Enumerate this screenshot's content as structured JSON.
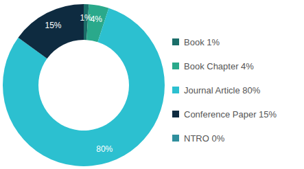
{
  "chart_data": {
    "type": "donut",
    "categories": [
      "Book 1%",
      "Book Chapter 4%",
      "Journal Article 80%",
      "Conference Paper 15%",
      "NTRO 0%"
    ],
    "values": [
      1,
      4,
      80,
      15,
      0
    ],
    "value_labels": [
      "1%",
      "4%",
      "80%",
      "15%",
      null
    ],
    "colors": [
      "#1b6e69",
      "#2aa98b",
      "#2cc0d0",
      "#0e2b40",
      "#2f8f9d"
    ],
    "data_labels": true,
    "legend": "right"
  }
}
